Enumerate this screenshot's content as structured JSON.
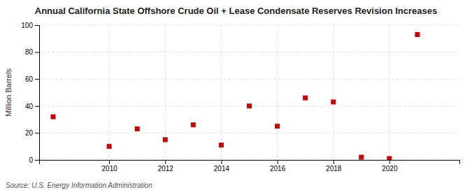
{
  "chart_data": {
    "type": "scatter",
    "title": "Annual California State Offshore Crude Oil + Lease Condensate Reserves Revision Increases",
    "y_label": "Million Barrels",
    "annotations": [
      "Source: U.S. Energy Information Administration"
    ],
    "x": [
      2008,
      2010,
      2011,
      2012,
      2013,
      2014,
      2015,
      2016,
      2017,
      2018,
      2019,
      2020,
      2021
    ],
    "values": [
      32,
      10,
      23,
      15,
      26,
      11,
      40,
      25,
      46,
      43,
      2,
      1,
      93
    ],
    "color": "#cc0000",
    "marker": "square",
    "xlim": [
      2007.5,
      2022.5
    ],
    "ylim": [
      0,
      100
    ],
    "xticks": [
      2010,
      2012,
      2014,
      2016,
      2018,
      2020
    ],
    "yticks": [
      0,
      20,
      40,
      60,
      80,
      100
    ],
    "grid": true
  }
}
